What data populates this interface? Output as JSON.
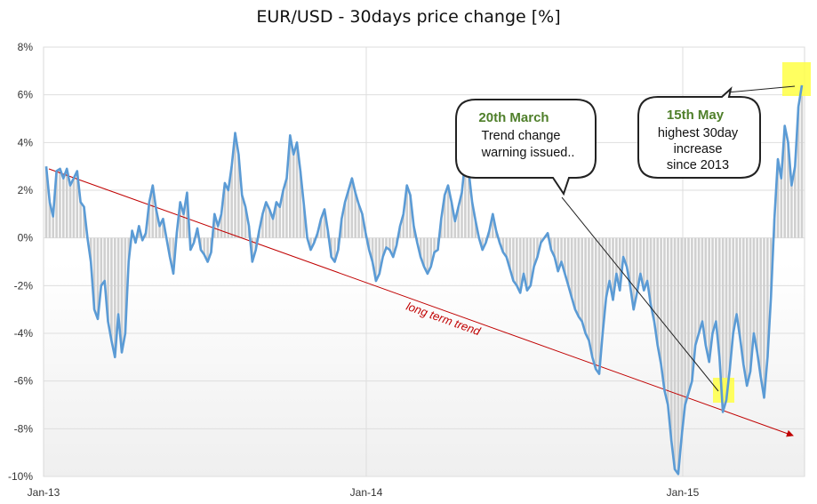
{
  "chart_data": {
    "type": "bar",
    "title": "EUR/USD  - 30days price change  [%]",
    "ylim": [
      -10,
      8
    ],
    "y_ticks": [
      "8%",
      "6%",
      "4%",
      "2%",
      "0%",
      "-2%",
      "-4%",
      "-6%",
      "-8%",
      "-10%"
    ],
    "x_ticks": [
      "Jan-13",
      "Jan-14",
      "Jan-15"
    ],
    "grid": true,
    "series": [
      {
        "values": [
          3.0,
          1.5,
          0.9,
          2.8,
          2.9,
          2.5,
          2.9,
          2.2,
          2.5,
          2.8,
          1.5,
          1.3,
          0.0,
          -1.0,
          -3.0,
          -3.4,
          -2.0,
          -1.8,
          -3.5,
          -4.3,
          -5.0,
          -3.2,
          -4.8,
          -4.0,
          -1.0,
          0.3,
          -0.2,
          0.5,
          -0.1,
          0.2,
          1.5,
          2.2,
          1.2,
          0.5,
          0.8,
          0.0,
          -0.8,
          -1.5,
          0.2,
          1.5,
          1.0,
          1.9,
          -0.5,
          -0.2,
          0.4,
          -0.5,
          -0.7,
          -1.0,
          -0.6,
          1.0,
          0.5,
          1.0,
          2.3,
          2.0,
          3.0,
          4.4,
          3.5,
          1.8,
          1.3,
          0.5,
          -1.0,
          -0.5,
          0.3,
          1.0,
          1.5,
          1.2,
          0.8,
          1.5,
          1.3,
          2.0,
          2.5,
          4.3,
          3.5,
          4.0,
          2.8,
          1.4,
          0.0,
          -0.5,
          -0.2,
          0.2,
          0.8,
          1.2,
          0.3,
          -0.8,
          -1.0,
          -0.5,
          0.8,
          1.5,
          2.0,
          2.5,
          1.9,
          1.4,
          1.0,
          0.2,
          -0.5,
          -1.0,
          -1.8,
          -1.5,
          -0.8,
          -0.4,
          -0.5,
          -0.8,
          -0.3,
          0.5,
          1.0,
          2.2,
          1.8,
          0.5,
          -0.2,
          -0.8,
          -1.2,
          -1.5,
          -1.2,
          -0.6,
          -0.5,
          0.8,
          1.8,
          2.2,
          1.5,
          0.7,
          1.3,
          1.9,
          3.3,
          2.8,
          1.5,
          0.7,
          0.0,
          -0.5,
          -0.2,
          0.3,
          1.0,
          0.3,
          -0.2,
          -0.6,
          -0.8,
          -1.3,
          -1.8,
          -2.0,
          -2.3,
          -1.5,
          -2.2,
          -2.0,
          -1.2,
          -0.8,
          -0.2,
          0.0,
          0.2,
          -0.5,
          -0.8,
          -1.4,
          -1.0,
          -1.5,
          -2.0,
          -2.5,
          -3.0,
          -3.3,
          -3.5,
          -4.0,
          -4.3,
          -5.0,
          -5.5,
          -5.7,
          -4.0,
          -2.5,
          -1.8,
          -2.6,
          -1.5,
          -2.2,
          -0.8,
          -1.2,
          -2.0,
          -3.0,
          -2.3,
          -1.5,
          -2.2,
          -1.8,
          -2.8,
          -3.5,
          -4.5,
          -5.3,
          -6.4,
          -7.0,
          -8.5,
          -9.7,
          -9.9,
          -8.3,
          -7.0,
          -6.5,
          -6.0,
          -4.5,
          -4.0,
          -3.5,
          -4.5,
          -5.2,
          -4.0,
          -3.5,
          -5.0,
          -7.3,
          -6.8,
          -5.5,
          -4.0,
          -3.2,
          -4.2,
          -5.3,
          -6.2,
          -5.6,
          -4.0,
          -4.8,
          -5.8,
          -6.7,
          -5.0,
          -2.5,
          0.8,
          3.3,
          2.5,
          4.7,
          4.0,
          2.2,
          3.0,
          5.5,
          6.4
        ]
      }
    ],
    "trend_label": "long term trend",
    "annotations": [
      {
        "heading": "20th March",
        "lines": [
          "Trend change",
          "warning issued.."
        ]
      },
      {
        "heading": "15th May",
        "lines": [
          "highest 30day",
          "increase",
          "since 2013"
        ]
      }
    ],
    "colors": {
      "line": "#5b9bd5",
      "bars": "#d0d0d0",
      "trend": "#c00000",
      "highlight": "#ffff44",
      "callout_heading": "#4f7f2a"
    }
  }
}
